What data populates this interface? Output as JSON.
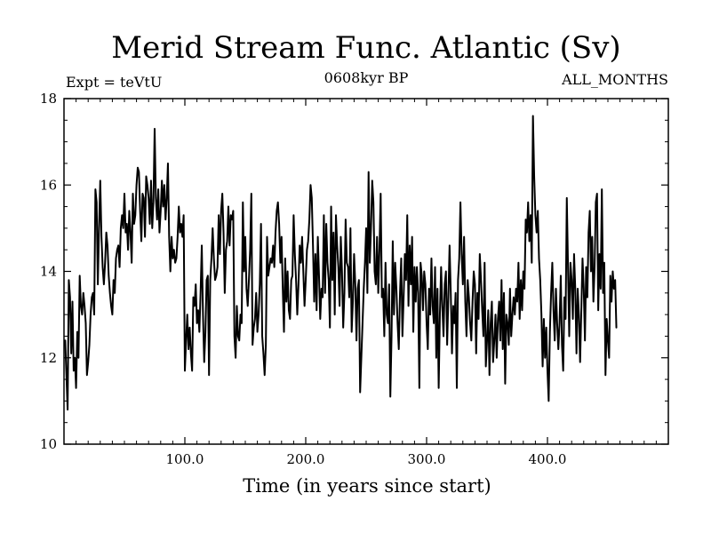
{
  "chart_data": {
    "type": "line",
    "title": "Merid Stream Func. Atlantic (Sv)",
    "subtitle": "0608kyr BP",
    "experiment_label": "Expt = teVtU",
    "period_label": "ALL_MONTHS",
    "xlabel": "Time (in years since start)",
    "ylabel": "",
    "xlim": [
      0,
      500
    ],
    "ylim": [
      10,
      18
    ],
    "x_ticks": [
      100,
      200,
      300,
      400
    ],
    "x_tick_labels": [
      "100.0",
      "200.0",
      "300.0",
      "400.0"
    ],
    "y_ticks": [
      10,
      12,
      14,
      16,
      18
    ],
    "y_tick_labels": [
      "10",
      "12",
      "14",
      "16",
      "18"
    ],
    "grid": false,
    "line_color": "#000000",
    "x_start": 1,
    "x_step": 1,
    "values": [
      12.4,
      11.6,
      10.8,
      13.8,
      13.4,
      12.1,
      13.3,
      11.7,
      12.0,
      11.3,
      12.6,
      12.0,
      13.9,
      13.2,
      13.0,
      13.5,
      13.2,
      12.8,
      11.6,
      11.9,
      12.3,
      13.0,
      13.4,
      13.5,
      13.0,
      15.9,
      15.6,
      13.7,
      15.0,
      16.1,
      14.8,
      14.1,
      13.7,
      14.2,
      14.9,
      14.6,
      13.9,
      13.5,
      13.2,
      13.0,
      13.8,
      13.5,
      14.3,
      14.5,
      14.6,
      14.1,
      15.0,
      15.3,
      15.0,
      15.8,
      14.9,
      15.1,
      14.5,
      15.4,
      14.9,
      14.2,
      15.8,
      15.1,
      15.3,
      16.0,
      16.4,
      16.3,
      15.4,
      14.7,
      15.8,
      15.7,
      14.8,
      16.2,
      16.0,
      15.7,
      15.1,
      16.1,
      15.0,
      15.6,
      17.3,
      15.7,
      15.2,
      15.9,
      14.9,
      15.4,
      16.1,
      15.5,
      16.0,
      15.2,
      15.7,
      16.5,
      14.8,
      14.0,
      14.8,
      14.3,
      14.5,
      14.2,
      14.3,
      14.8,
      15.5,
      14.9,
      15.1,
      14.8,
      15.3,
      11.7,
      12.4,
      13.0,
      12.2,
      12.7,
      12.1,
      11.7,
      13.4,
      13.2,
      13.7,
      12.8,
      13.1,
      12.6,
      13.5,
      14.6,
      13.0,
      11.9,
      12.6,
      13.8,
      13.9,
      11.6,
      13.8,
      14.3,
      15.0,
      14.3,
      13.8,
      13.9,
      14.1,
      15.3,
      14.4,
      15.4,
      15.8,
      14.9,
      13.5,
      14.5,
      14.7,
      15.5,
      14.6,
      15.3,
      15.2,
      15.4,
      12.5,
      12.0,
      13.2,
      12.5,
      12.4,
      13.0,
      12.8,
      15.6,
      14.0,
      14.8,
      13.6,
      13.2,
      13.8,
      14.5,
      15.8,
      12.3,
      12.7,
      12.9,
      13.5,
      12.6,
      13.0,
      13.7,
      15.1,
      12.5,
      12.1,
      11.6,
      12.3,
      14.8,
      13.9,
      14.1,
      14.3,
      14.2,
      14.6,
      14.1,
      14.9,
      15.4,
      15.6,
      15.1,
      14.2,
      14.8,
      13.6,
      12.6,
      14.3,
      13.3,
      14.0,
      13.1,
      12.9,
      13.8,
      13.9,
      15.3,
      14.4,
      13.8,
      13.0,
      13.7,
      14.6,
      14.2,
      14.8,
      14.0,
      13.2,
      13.8,
      14.5,
      14.7,
      15.2,
      16.0,
      15.7,
      14.6,
      13.3,
      14.4,
      13.1,
      14.8,
      13.9,
      12.9,
      13.6,
      13.4,
      15.3,
      13.5,
      15.1,
      14.2,
      13.8,
      12.7,
      15.5,
      13.8,
      14.9,
      13.0,
      15.3,
      14.6,
      14.1,
      13.2,
      14.8,
      14.0,
      12.7,
      13.5,
      15.2,
      14.2,
      14.1,
      13.4,
      15.0,
      12.6,
      13.3,
      14.4,
      13.7,
      12.4,
      13.6,
      13.8,
      11.2,
      12.0,
      12.8,
      13.6,
      14.2,
      15.0,
      13.5,
      16.3,
      14.2,
      15.0,
      16.1,
      15.6,
      14.0,
      13.7,
      14.8,
      13.5,
      14.5,
      15.8,
      13.4,
      13.6,
      12.5,
      14.2,
      13.0,
      12.8,
      13.7,
      11.1,
      12.5,
      14.7,
      13.0,
      14.2,
      13.6,
      12.8,
      12.2,
      13.5,
      14.3,
      12.5,
      13.4,
      14.4,
      13.8,
      15.3,
      13.2,
      14.6,
      13.7,
      14.8,
      12.6,
      14.1,
      13.3,
      14.1,
      13.5,
      11.3,
      14.2,
      13.9,
      13.1,
      14.0,
      13.7,
      12.8,
      12.2,
      13.6,
      13.0,
      14.3,
      13.2,
      12.8,
      14.1,
      12.0,
      13.6,
      11.3,
      13.0,
      14.1,
      13.2,
      12.5,
      13.7,
      14.0,
      12.3,
      13.4,
      14.6,
      13.5,
      12.1,
      13.2,
      12.8,
      13.5,
      11.3,
      13.8,
      14.3,
      15.6,
      14.4,
      13.7,
      14.8,
      13.3,
      12.5,
      13.8,
      13.4,
      12.8,
      12.4,
      13.3,
      14.0,
      13.7,
      12.1,
      13.5,
      12.9,
      14.4,
      13.8,
      13.1,
      12.5,
      14.2,
      11.8,
      12.4,
      13.1,
      11.6,
      12.8,
      13.3,
      11.9,
      12.4,
      13.0,
      12.0,
      12.9,
      13.3,
      12.4,
      13.8,
      12.2,
      13.5,
      11.4,
      13.0,
      12.8,
      12.3,
      13.6,
      12.5,
      13.0,
      13.4,
      13.0,
      13.6,
      13.3,
      14.2,
      12.9,
      13.8,
      13.1,
      14.0,
      13.6,
      15.2,
      14.9,
      15.6,
      14.7,
      15.3,
      14.2,
      17.6,
      16.2,
      15.3,
      14.9,
      15.4,
      14.3,
      13.8,
      13.0,
      11.8,
      12.9,
      12.0,
      12.7,
      11.7,
      11.0,
      12.6,
      13.5,
      14.2,
      13.1,
      12.4,
      13.6,
      12.8,
      12.2,
      12.8,
      13.9,
      12.3,
      11.7,
      13.4,
      12.9,
      15.7,
      14.1,
      12.5,
      14.2,
      13.8,
      12.9,
      14.4,
      13.6,
      12.1,
      13.6,
      13.0,
      11.9,
      13.1,
      14.3,
      13.6,
      12.4,
      14.1,
      13.4,
      14.9,
      15.4,
      14.0,
      14.8,
      13.3,
      14.1,
      15.6,
      15.8,
      13.1,
      14.4,
      13.6,
      15.9,
      13.5,
      14.2,
      11.6,
      12.9,
      12.4,
      12.0,
      13.9,
      13.3,
      14.0,
      13.6,
      13.8,
      12.7
    ]
  }
}
